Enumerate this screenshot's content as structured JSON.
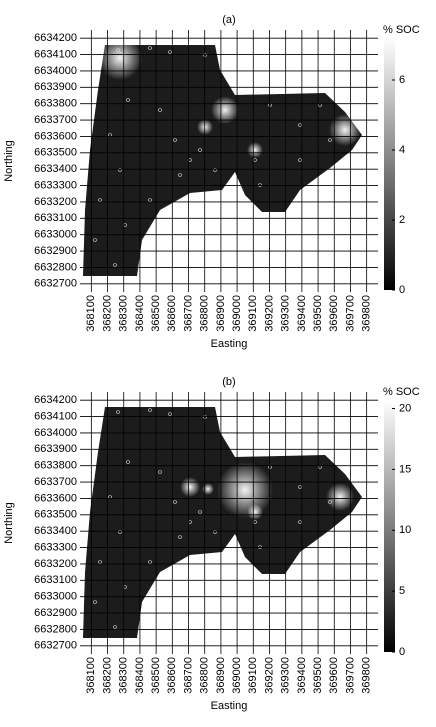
{
  "chart_data": [
    {
      "type": "heatmap",
      "title": "(a)",
      "xlabel": "Easting",
      "ylabel": "Northing",
      "colorbar_label": "% SOC",
      "xlim": [
        368030,
        369870
      ],
      "ylim": [
        6632650,
        6634250
      ],
      "xticks": [
        368100,
        368200,
        368300,
        368400,
        368500,
        368600,
        368700,
        368800,
        368900,
        369000,
        369100,
        369200,
        369300,
        369400,
        369500,
        369600,
        369700,
        369800
      ],
      "yticks": [
        6632700,
        6632800,
        6632900,
        6633000,
        6633100,
        6633200,
        6633300,
        6633400,
        6633500,
        6633600,
        6633700,
        6633800,
        6633900,
        6634000,
        6634100,
        6634200
      ],
      "clim": [
        0,
        7.2
      ],
      "cticks": [
        0,
        2,
        4,
        6
      ],
      "grid": true
    },
    {
      "type": "heatmap",
      "title": "(b)",
      "xlabel": "Easting",
      "ylabel": "Northing",
      "colorbar_label": "% SOC",
      "xlim": [
        368030,
        369870
      ],
      "ylim": [
        6632650,
        6634250
      ],
      "xticks": [
        368100,
        368200,
        368300,
        368400,
        368500,
        368600,
        368700,
        368800,
        368900,
        369000,
        369100,
        369200,
        369300,
        369400,
        369500,
        369600,
        369700,
        369800
      ],
      "yticks": [
        6632700,
        6632800,
        6632900,
        6633000,
        6633100,
        6633200,
        6633300,
        6633400,
        6633500,
        6633600,
        6633700,
        6633800,
        6633900,
        6634000,
        6634100,
        6634200
      ],
      "clim": [
        0,
        20.7
      ],
      "cticks": [
        0,
        5,
        10,
        15,
        20
      ],
      "grid": true
    }
  ]
}
